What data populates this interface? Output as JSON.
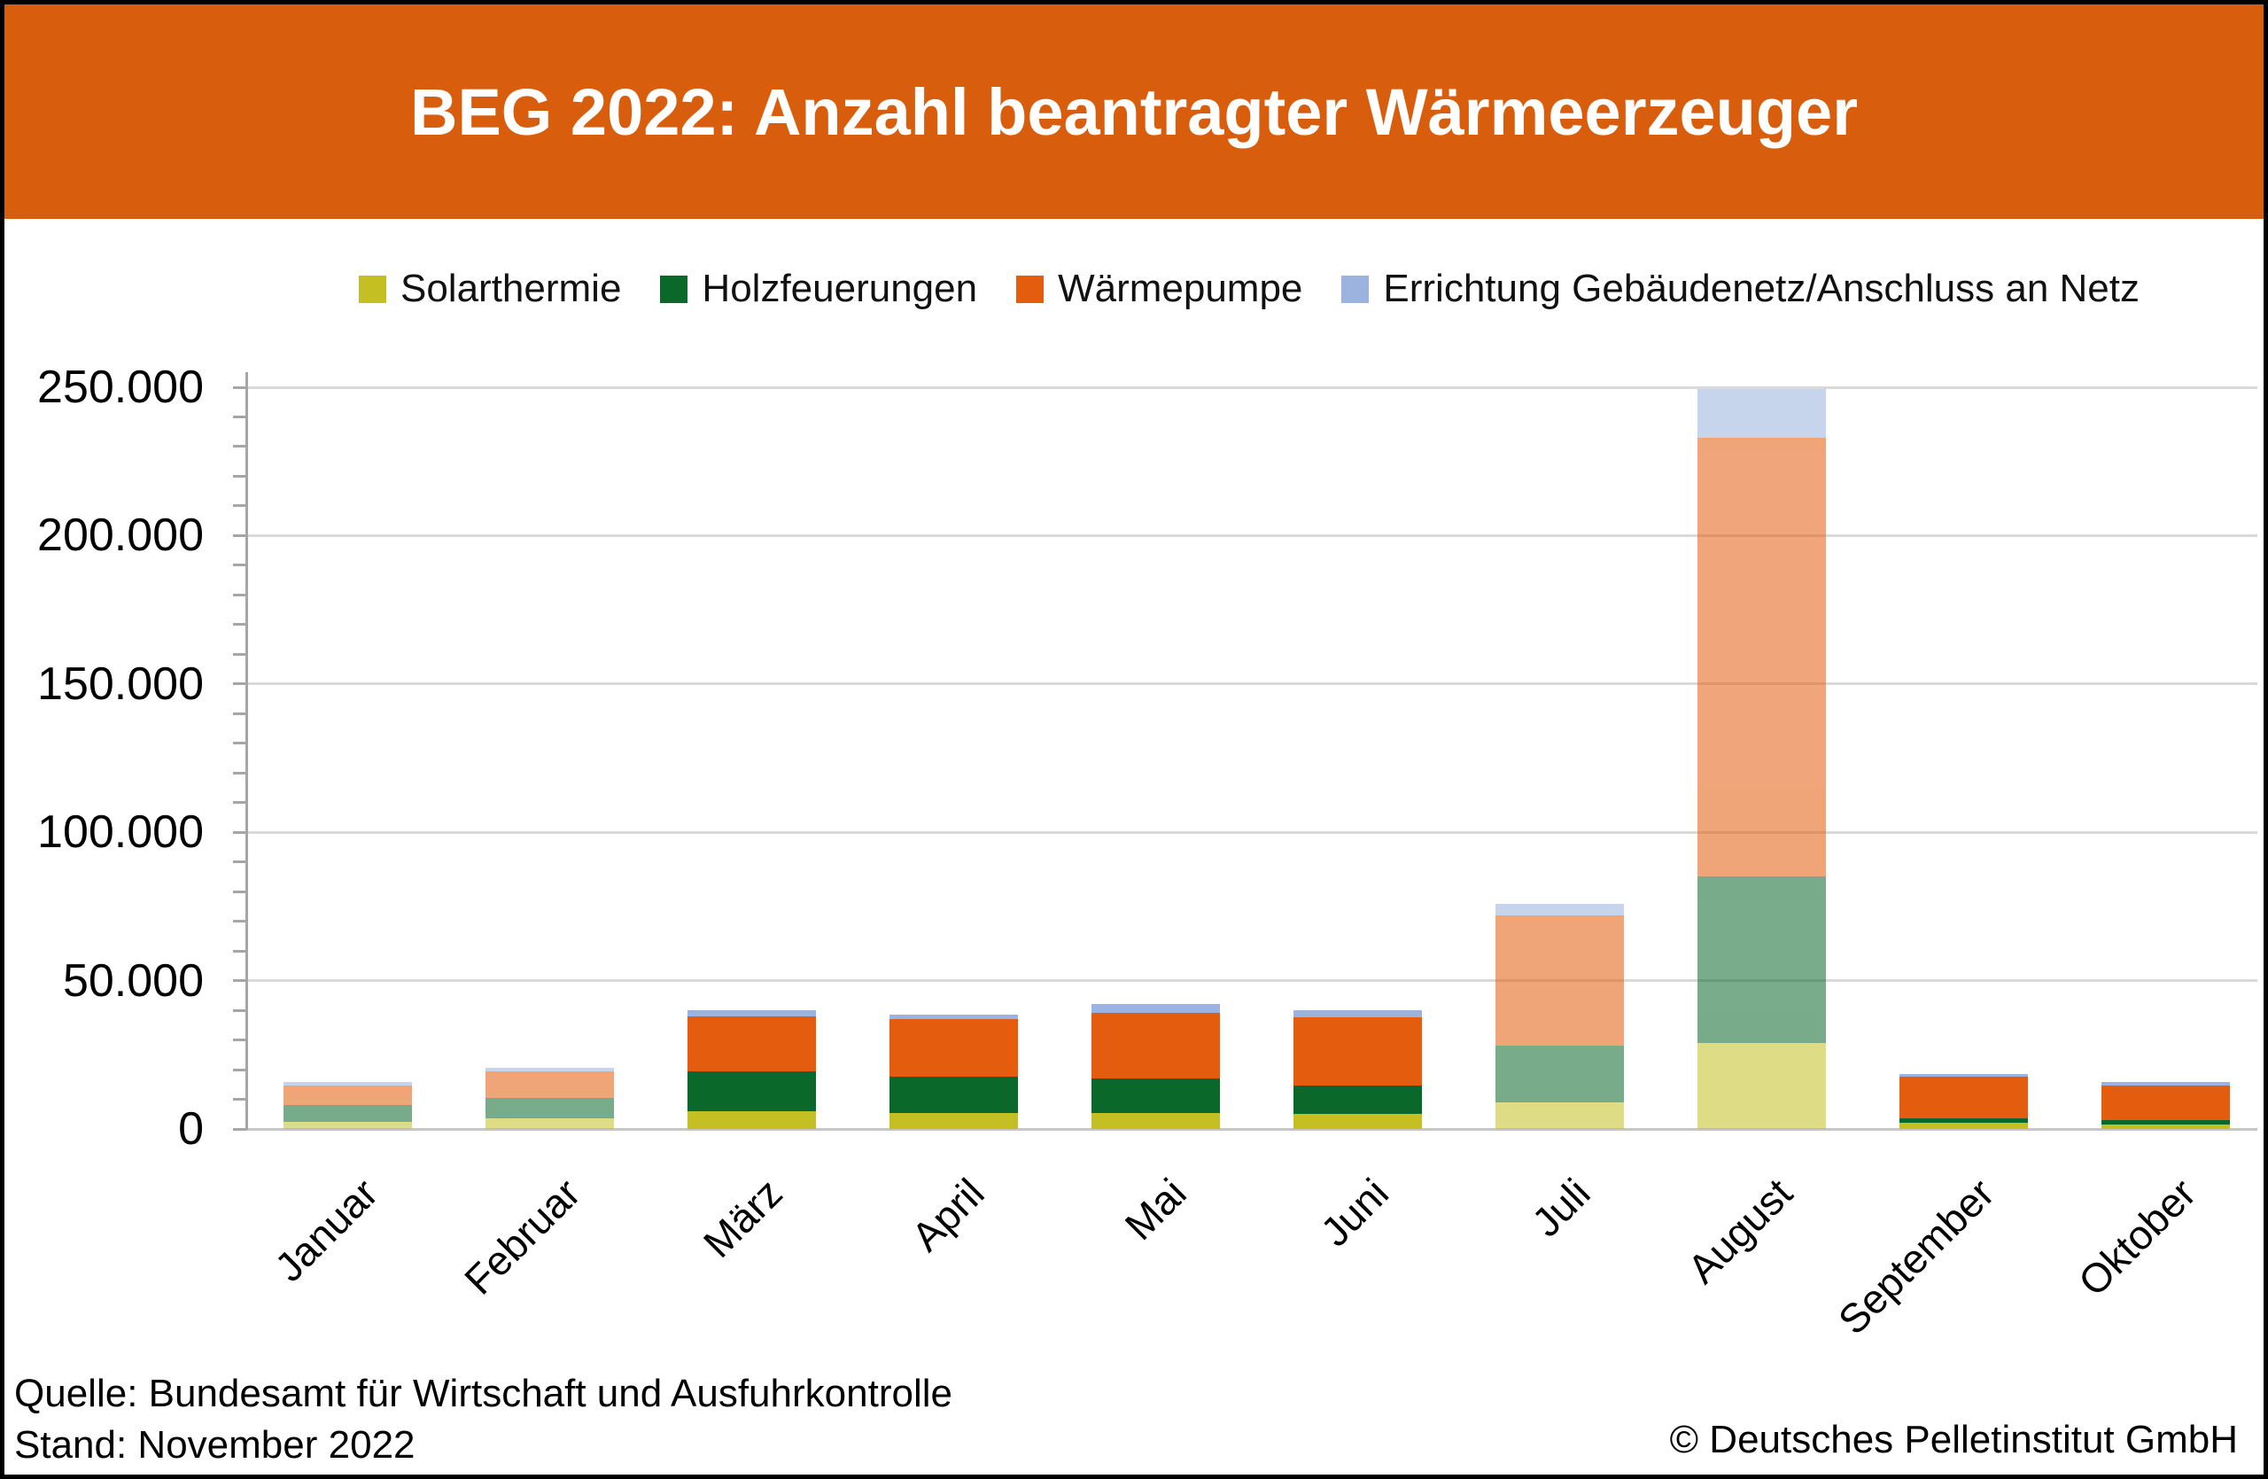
{
  "title": "BEG 2022: Anzahl beantragter Wärmeerzeuger",
  "footer": {
    "source": "Quelle: Bundesamt für Wirtschaft und Ausfuhrkontrolle",
    "stand": "Stand: November 2022",
    "copyright": "© Deutsches Pelletinstitut GmbH"
  },
  "colors": {
    "header_band": "#D85E0E",
    "gridline": "#D9D9D9",
    "axis": "#A6A6A6",
    "background": "#FFFFFF"
  },
  "chart_data": {
    "type": "bar",
    "stacked": true,
    "title": "BEG 2022: Anzahl beantragter Wärmeerzeuger",
    "xlabel": "",
    "ylabel": "",
    "ylim": [
      0,
      250000
    ],
    "ytick_step": 50000,
    "ytick_labels": [
      "0",
      "50.000",
      "100.000",
      "150.000",
      "200.000",
      "250.000"
    ],
    "grid": true,
    "legend_position": "top",
    "categories": [
      "Januar",
      "Februar",
      "März",
      "April",
      "Mai",
      "Juni",
      "Juli",
      "August",
      "September",
      "Oktober"
    ],
    "faded_categories": [
      "Januar",
      "Februar",
      "Juli",
      "August"
    ],
    "series": [
      {
        "name": "Solarthermie",
        "color": "#C4C023",
        "values": [
          2500,
          3500,
          6000,
          5500,
          5500,
          5000,
          9000,
          29000,
          2000,
          1500
        ]
      },
      {
        "name": "Holzfeuerungen",
        "color": "#0A682B",
        "values": [
          5700,
          7000,
          13500,
          12000,
          11500,
          9500,
          19000,
          56000,
          1500,
          1500
        ]
      },
      {
        "name": "Wärmepumpe",
        "color": "#E45C0D",
        "values": [
          6500,
          9000,
          18500,
          19500,
          22000,
          23000,
          44000,
          148000,
          14000,
          11500
        ]
      },
      {
        "name": "Errichtung Gebäudenetz/Anschluss an Netz",
        "color": "#9BB3DE",
        "values": [
          1000,
          1000,
          2000,
          1500,
          3000,
          2500,
          4000,
          16500,
          1000,
          1300
        ]
      }
    ]
  }
}
